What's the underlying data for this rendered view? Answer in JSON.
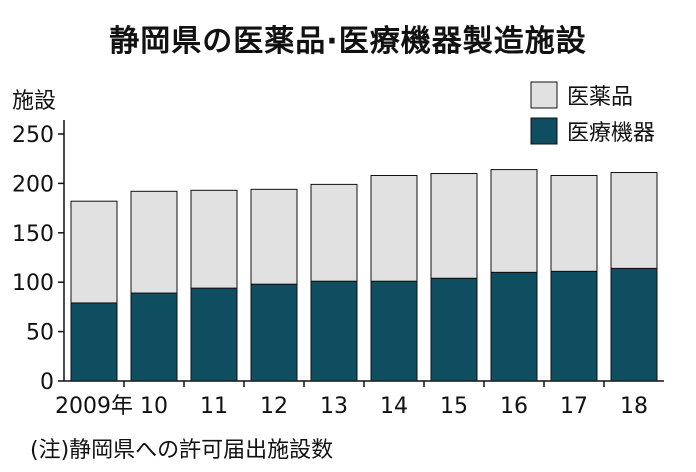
{
  "title": "静岡県の医薬品·医療機器製造施設",
  "note": "(注)静岡県への許可届出施設数",
  "chart_data": {
    "type": "bar",
    "stacked": true,
    "title": "静岡県の医薬品·医療機器製造施設",
    "ylabel": "施設",
    "xlabel": "",
    "categories": [
      "2009年",
      "10",
      "11",
      "12",
      "13",
      "14",
      "15",
      "16",
      "17",
      "18"
    ],
    "ylim": [
      0,
      250
    ],
    "yticks": [
      0,
      50,
      100,
      150,
      200,
      250
    ],
    "grid": false,
    "legend_position": "top-right",
    "series": [
      {
        "name": "医療機器",
        "color": "#0f4d61",
        "values": [
          79,
          89,
          94,
          98,
          101,
          101,
          104,
          110,
          111,
          114
        ]
      },
      {
        "name": "医薬品",
        "color": "#e1e1e1",
        "values": [
          103,
          103,
          99,
          96,
          98,
          107,
          106,
          104,
          97,
          97
        ]
      }
    ]
  }
}
